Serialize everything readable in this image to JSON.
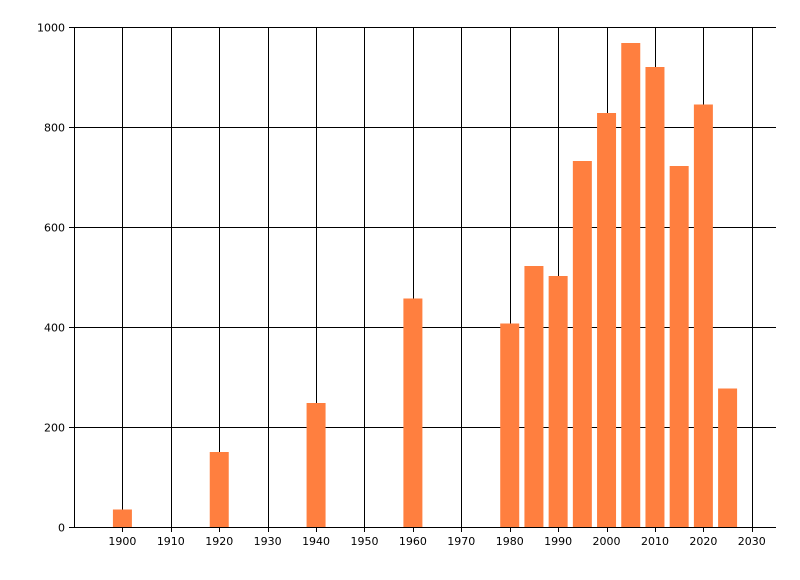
{
  "chart_data": {
    "type": "bar",
    "title": "",
    "xlabel": "",
    "ylabel": "",
    "x": [
      1900,
      1920,
      1940,
      1960,
      1980,
      1985,
      1990,
      1995,
      2000,
      2005,
      2010,
      2015,
      2020,
      2025
    ],
    "values": [
      35,
      150,
      248,
      457,
      407,
      522,
      502,
      732,
      828,
      968,
      920,
      722,
      845,
      277
    ],
    "xlim": [
      1890,
      2035
    ],
    "ylim": [
      0,
      1000
    ],
    "x_ticks": [
      1900,
      1910,
      1920,
      1930,
      1940,
      1950,
      1960,
      1970,
      1980,
      1990,
      2000,
      2010,
      2020,
      2030
    ],
    "y_ticks": [
      0,
      200,
      400,
      600,
      800,
      1000
    ],
    "grid": true,
    "bar_color": "#ff7f3f"
  }
}
